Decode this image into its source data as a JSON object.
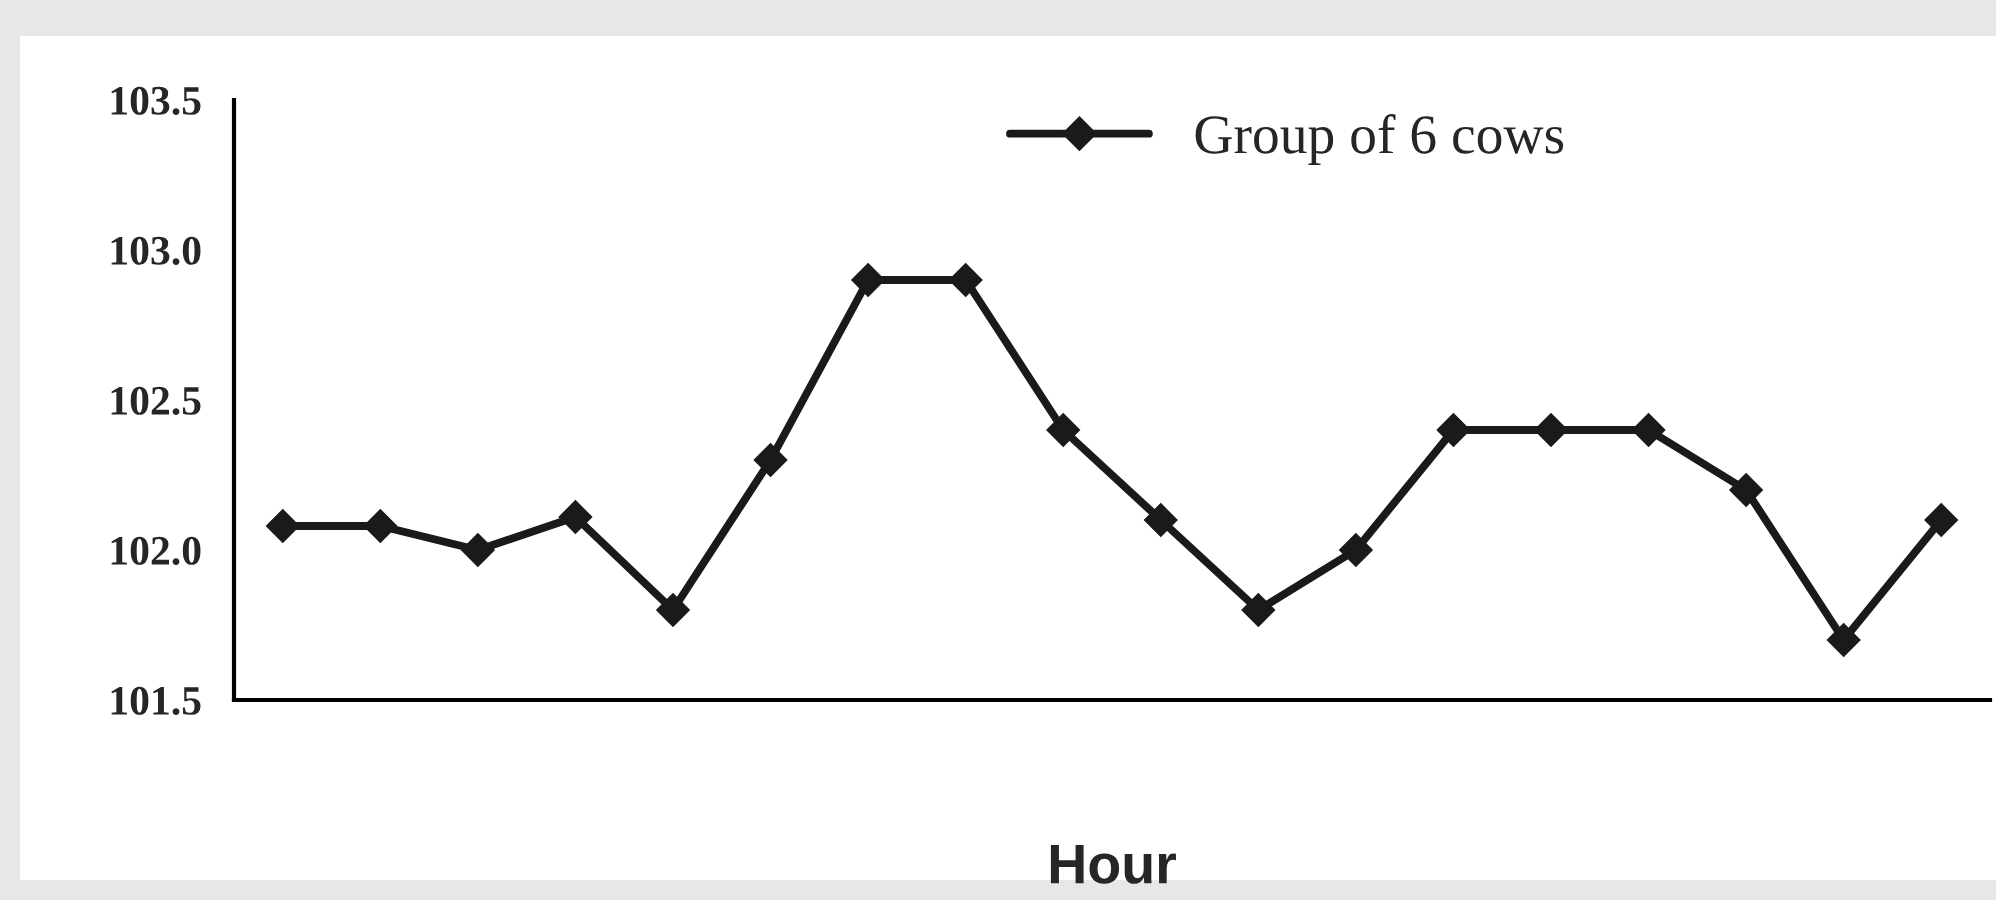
{
  "chart_data": {
    "type": "line",
    "xlabel": "Hour",
    "categories": [
      null,
      null,
      null,
      null,
      null,
      null,
      null,
      null,
      null,
      null,
      null,
      null,
      null,
      null,
      null,
      null,
      null,
      null
    ],
    "series": [
      {
        "name": "Group of 6 cows",
        "color": "#1a1a1a",
        "values": [
          102.08,
          102.08,
          102.0,
          102.11,
          101.8,
          102.3,
          102.9,
          102.9,
          102.4,
          102.1,
          101.8,
          102.0,
          102.4,
          102.4,
          102.4,
          102.2,
          101.7,
          102.1
        ]
      }
    ],
    "ylim": [
      101.5,
      103.5
    ],
    "yticks": [
      {
        "value": 101.5,
        "label": "101.5"
      },
      {
        "value": 102,
        "label": "102.0"
      },
      {
        "value": 102.5,
        "label": "102.5"
      },
      {
        "value": 103,
        "label": "103.0"
      },
      {
        "value": 103.5,
        "label": "103.5"
      }
    ],
    "grid": false,
    "legend": "top",
    "marker": "diamond",
    "line_style": "solid"
  }
}
